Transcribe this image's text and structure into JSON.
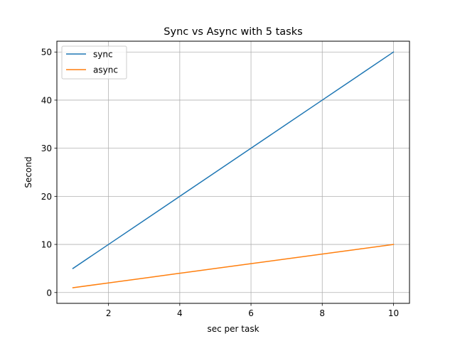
{
  "chart_data": {
    "type": "line",
    "title": "Sync vs Async with 5 tasks",
    "xlabel": "sec per task",
    "ylabel": "Second",
    "x": [
      1,
      2,
      3,
      4,
      5,
      6,
      7,
      8,
      9,
      10
    ],
    "series": [
      {
        "name": "sync",
        "color": "#1f77b4",
        "values": [
          5,
          10,
          15,
          20,
          25,
          30,
          35,
          40,
          45,
          50
        ]
      },
      {
        "name": "async",
        "color": "#ff7f0e",
        "values": [
          1,
          2,
          3,
          4,
          5,
          6,
          7,
          8,
          9,
          10
        ]
      }
    ],
    "xticks": [
      2,
      4,
      6,
      8,
      10
    ],
    "yticks": [
      0,
      10,
      20,
      30,
      40,
      50
    ],
    "xlim": [
      0.55,
      10.45
    ],
    "ylim": [
      -2.25,
      52.25
    ],
    "grid": true,
    "legend_position": "top-left"
  }
}
